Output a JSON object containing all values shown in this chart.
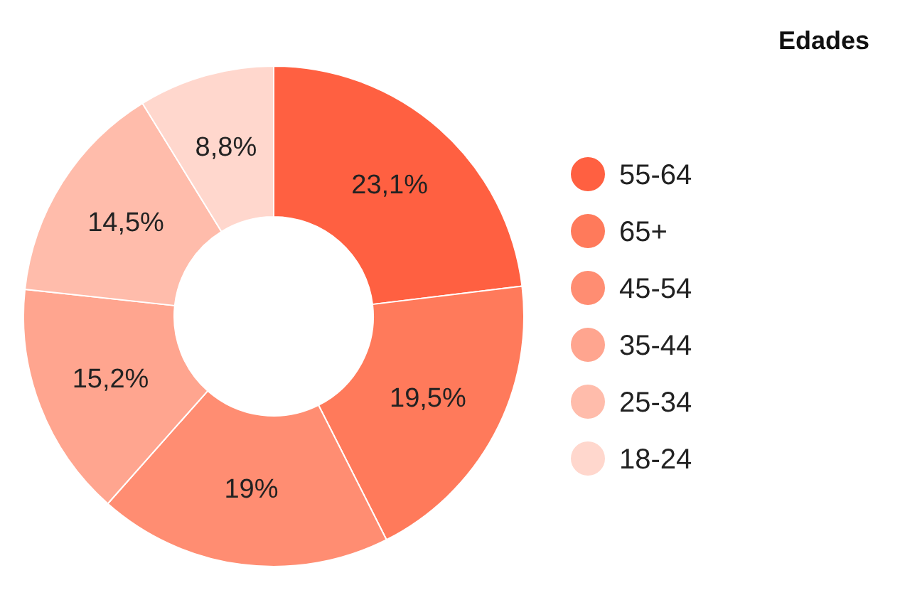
{
  "chart_data": {
    "type": "donut",
    "title": "Edades",
    "categories": [
      "55-64",
      "65+",
      "45-54",
      "35-44",
      "25-34",
      "18-24"
    ],
    "values": [
      23.1,
      19.5,
      19,
      15.2,
      14.5,
      8.8
    ],
    "value_labels": [
      "23,1%",
      "19,5%",
      "19%",
      "15,2%",
      "14,5%",
      "8,8%"
    ],
    "colors": [
      "#ff6041",
      "#ff7a5b",
      "#ff8d72",
      "#ffa58f",
      "#ffbcab",
      "#ffd7cd"
    ],
    "legend": "right"
  }
}
